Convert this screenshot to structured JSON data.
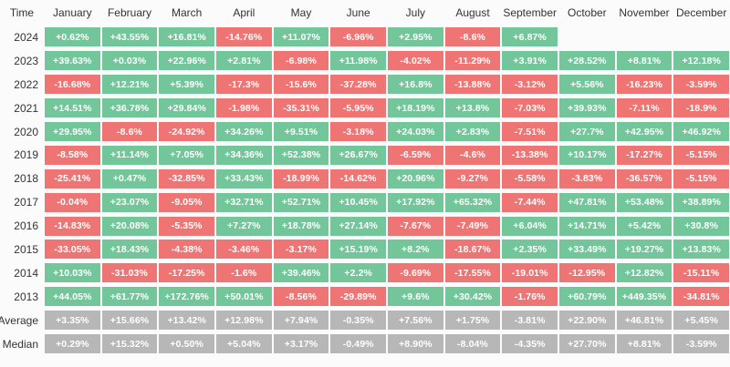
{
  "page": {
    "background": "#fbfbfb"
  },
  "colors": {
    "positive": "#73c69a",
    "negative": "#ee7574",
    "neutral": "#b7b7b7",
    "label_text": "#333333",
    "cell_text": "#ffffff"
  },
  "chart_data": {
    "type": "heatmap",
    "title": "",
    "corner_label": "Time",
    "columns": [
      "January",
      "February",
      "March",
      "April",
      "May",
      "June",
      "July",
      "August",
      "September",
      "October",
      "November",
      "December"
    ],
    "legend": "none",
    "color_rule": "positive values green, negative values red, summary rows gray",
    "rows": [
      {
        "label": "2024",
        "kind": "year",
        "values": [
          "+0.62%",
          "+43.55%",
          "+16.81%",
          "-14.76%",
          "+11.07%",
          "-6.96%",
          "+2.95%",
          "-8.6%",
          "+6.87%",
          "",
          "",
          ""
        ]
      },
      {
        "label": "2023",
        "kind": "year",
        "values": [
          "+39.63%",
          "+0.03%",
          "+22.96%",
          "+2.81%",
          "-6.98%",
          "+11.98%",
          "-4.02%",
          "-11.29%",
          "+3.91%",
          "+28.52%",
          "+8.81%",
          "+12.18%"
        ]
      },
      {
        "label": "2022",
        "kind": "year",
        "values": [
          "-16.68%",
          "+12.21%",
          "+5.39%",
          "-17.3%",
          "-15.6%",
          "-37.28%",
          "+16.8%",
          "-13.88%",
          "-3.12%",
          "+5.56%",
          "-16.23%",
          "-3.59%"
        ]
      },
      {
        "label": "2021",
        "kind": "year",
        "values": [
          "+14.51%",
          "+36.78%",
          "+29.84%",
          "-1.98%",
          "-35.31%",
          "-5.95%",
          "+18.19%",
          "+13.8%",
          "-7.03%",
          "+39.93%",
          "-7.11%",
          "-18.9%"
        ]
      },
      {
        "label": "2020",
        "kind": "year",
        "values": [
          "+29.95%",
          "-8.6%",
          "-24.92%",
          "+34.26%",
          "+9.51%",
          "-3.18%",
          "+24.03%",
          "+2.83%",
          "-7.51%",
          "+27.7%",
          "+42.95%",
          "+46.92%"
        ]
      },
      {
        "label": "2019",
        "kind": "year",
        "values": [
          "-8.58%",
          "+11.14%",
          "+7.05%",
          "+34.36%",
          "+52.38%",
          "+26.67%",
          "-6.59%",
          "-4.6%",
          "-13.38%",
          "+10.17%",
          "-17.27%",
          "-5.15%"
        ]
      },
      {
        "label": "2018",
        "kind": "year",
        "values": [
          "-25.41%",
          "+0.47%",
          "-32.85%",
          "+33.43%",
          "-18.99%",
          "-14.62%",
          "+20.96%",
          "-9.27%",
          "-5.58%",
          "-3.83%",
          "-36.57%",
          "-5.15%"
        ]
      },
      {
        "label": "2017",
        "kind": "year",
        "values": [
          "-0.04%",
          "+23.07%",
          "-9.05%",
          "+32.71%",
          "+52.71%",
          "+10.45%",
          "+17.92%",
          "+65.32%",
          "-7.44%",
          "+47.81%",
          "+53.48%",
          "+38.89%"
        ]
      },
      {
        "label": "2016",
        "kind": "year",
        "values": [
          "-14.83%",
          "+20.08%",
          "-5.35%",
          "+7.27%",
          "+18.78%",
          "+27.14%",
          "-7.67%",
          "-7.49%",
          "+6.04%",
          "+14.71%",
          "+5.42%",
          "+30.8%"
        ]
      },
      {
        "label": "2015",
        "kind": "year",
        "values": [
          "-33.05%",
          "+18.43%",
          "-4.38%",
          "-3.46%",
          "-3.17%",
          "+15.19%",
          "+8.2%",
          "-18.67%",
          "+2.35%",
          "+33.49%",
          "+19.27%",
          "+13.83%"
        ]
      },
      {
        "label": "2014",
        "kind": "year",
        "values": [
          "+10.03%",
          "-31.03%",
          "-17.25%",
          "-1.6%",
          "+39.46%",
          "+2.2%",
          "-9.69%",
          "-17.55%",
          "-19.01%",
          "-12.95%",
          "+12.82%",
          "-15.11%"
        ]
      },
      {
        "label": "2013",
        "kind": "year",
        "values": [
          "+44.05%",
          "+61.77%",
          "+172.76%",
          "+50.01%",
          "-8.56%",
          "-29.89%",
          "+9.6%",
          "+30.42%",
          "-1.76%",
          "+60.79%",
          "+449.35%",
          "-34.81%"
        ]
      },
      {
        "label": "Average",
        "kind": "summary",
        "values": [
          "+3.35%",
          "+15.66%",
          "+13.42%",
          "+12.98%",
          "+7.94%",
          "-0.35%",
          "+7.56%",
          "+1.75%",
          "-3.81%",
          "+22.90%",
          "+46.81%",
          "+5.45%"
        ]
      },
      {
        "label": "Median",
        "kind": "summary",
        "values": [
          "+0.29%",
          "+15.32%",
          "+0.50%",
          "+5.04%",
          "+3.17%",
          "-0.49%",
          "+8.90%",
          "-8.04%",
          "-4.35%",
          "+27.70%",
          "+8.81%",
          "-3.59%"
        ]
      }
    ]
  }
}
